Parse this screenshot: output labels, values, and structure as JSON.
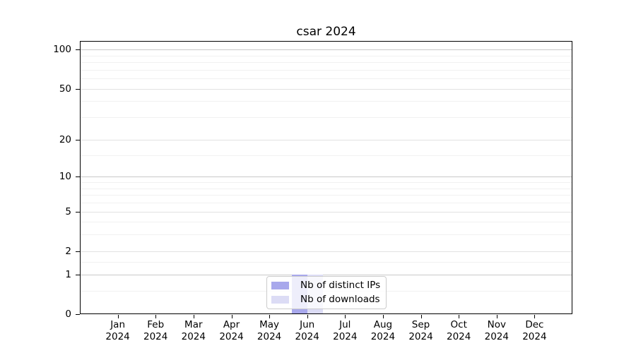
{
  "chart_data": {
    "type": "bar",
    "title": "csar 2024",
    "x_tick_labels": [
      [
        "Jan",
        "2024"
      ],
      [
        "Feb",
        "2024"
      ],
      [
        "Mar",
        "2024"
      ],
      [
        "Apr",
        "2024"
      ],
      [
        "May",
        "2024"
      ],
      [
        "Jun",
        "2024"
      ],
      [
        "Jul",
        "2024"
      ],
      [
        "Aug",
        "2024"
      ],
      [
        "Sep",
        "2024"
      ],
      [
        "Oct",
        "2024"
      ],
      [
        "Nov",
        "2024"
      ],
      [
        "Dec",
        "2024"
      ]
    ],
    "series": [
      {
        "name": "Nb of distinct IPs",
        "color": "#a8a8ec",
        "values": [
          0,
          0,
          0,
          0,
          0,
          1,
          0,
          0,
          0,
          0,
          0,
          0
        ]
      },
      {
        "name": "Nb of downloads",
        "color": "#dcdcf5",
        "values": [
          0,
          0,
          0,
          0,
          0,
          1,
          0,
          0,
          0,
          0,
          0,
          0
        ]
      }
    ],
    "yscale": "log1p",
    "ylim": [
      0,
      116.4
    ],
    "y_major_ticks": [
      0,
      1,
      2,
      5,
      10,
      20,
      50,
      100
    ],
    "y_minor_gridlines": [
      0.5,
      1.5,
      3,
      4,
      6,
      7,
      8,
      9,
      15,
      30,
      40,
      60,
      70,
      80,
      90
    ],
    "grid": true,
    "legend": {
      "position": "lower center",
      "entries": [
        "Nb of distinct IPs",
        "Nb of downloads"
      ]
    },
    "axis_colors": {
      "spine": "#000000",
      "grid_decade": "#c9c9c9",
      "grid_major": "#e2e2e2",
      "grid_minor": "#f1f1f1"
    }
  }
}
